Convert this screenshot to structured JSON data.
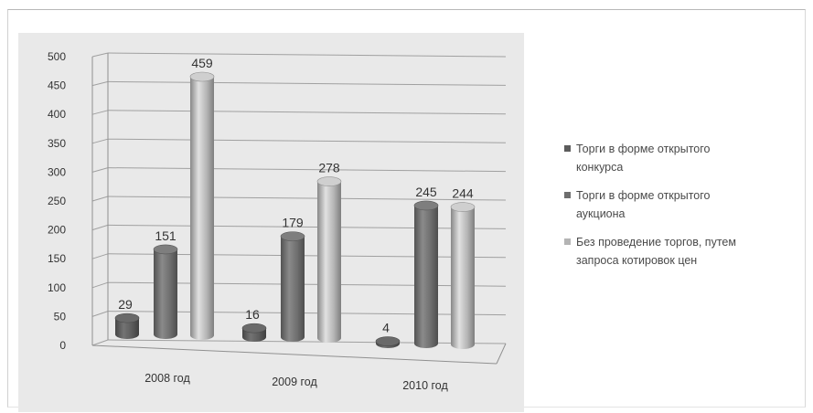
{
  "chart_data": {
    "type": "bar",
    "categories": [
      "2008 год",
      "2009 год",
      "2010 год"
    ],
    "series": [
      {
        "name": "Торги  в форме открытого конкурса",
        "values": [
          29,
          16,
          4
        ],
        "color": "#5c5c5c"
      },
      {
        "name": "Торги  в форме открытого аукциона",
        "values": [
          151,
          179,
          245
        ],
        "color": "#6e6e6e"
      },
      {
        "name": "Без проведение торгов, путем запроса котировок цен",
        "values": [
          459,
          278,
          244
        ],
        "color": "#b4b4b4"
      }
    ],
    "yticks": [
      "0",
      "50",
      "100",
      "150",
      "200",
      "250",
      "300",
      "350",
      "400",
      "450",
      "500"
    ],
    "ylim": [
      0,
      500
    ],
    "grid": true,
    "legend_position": "right"
  },
  "legend": {
    "items": [
      {
        "line1": "Торги  в форме открытого",
        "line2": "конкурса"
      },
      {
        "line1": "Торги  в форме открытого",
        "line2": "аукциона"
      },
      {
        "line1": "Без проведение торгов, путем",
        "line2": "запроса котировок цен"
      }
    ]
  }
}
